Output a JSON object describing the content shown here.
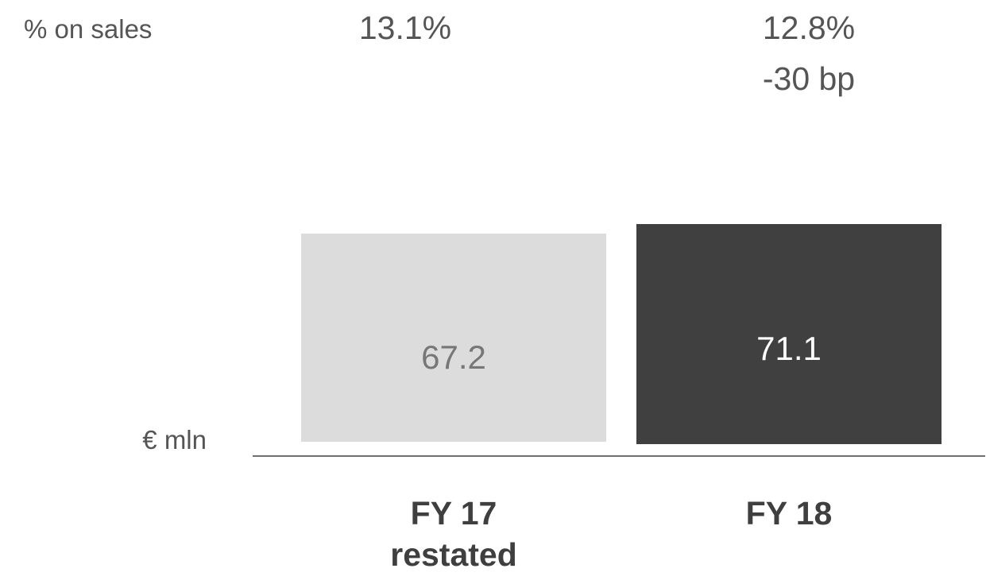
{
  "header": {
    "metric_label": "% on sales"
  },
  "chart_data": {
    "type": "bar",
    "unit_label": "€ mln",
    "categories": [
      "FY 17\nrestated",
      "FY 18"
    ],
    "values": [
      67.2,
      71.1
    ],
    "value_labels": [
      "67.2",
      "71.1"
    ],
    "category_lines": [
      [
        "FY 17",
        "restated"
      ],
      [
        "FY 18"
      ]
    ],
    "pct_on_sales": [
      "13.1%",
      "12.8%"
    ],
    "change": "-30 bp",
    "bar_colors": [
      "#dcdcdc",
      "#404040"
    ],
    "label_colors": [
      "#777777",
      "#ffffff"
    ],
    "axis_color": "#6e6e6e",
    "ylim": [
      0,
      80
    ]
  }
}
